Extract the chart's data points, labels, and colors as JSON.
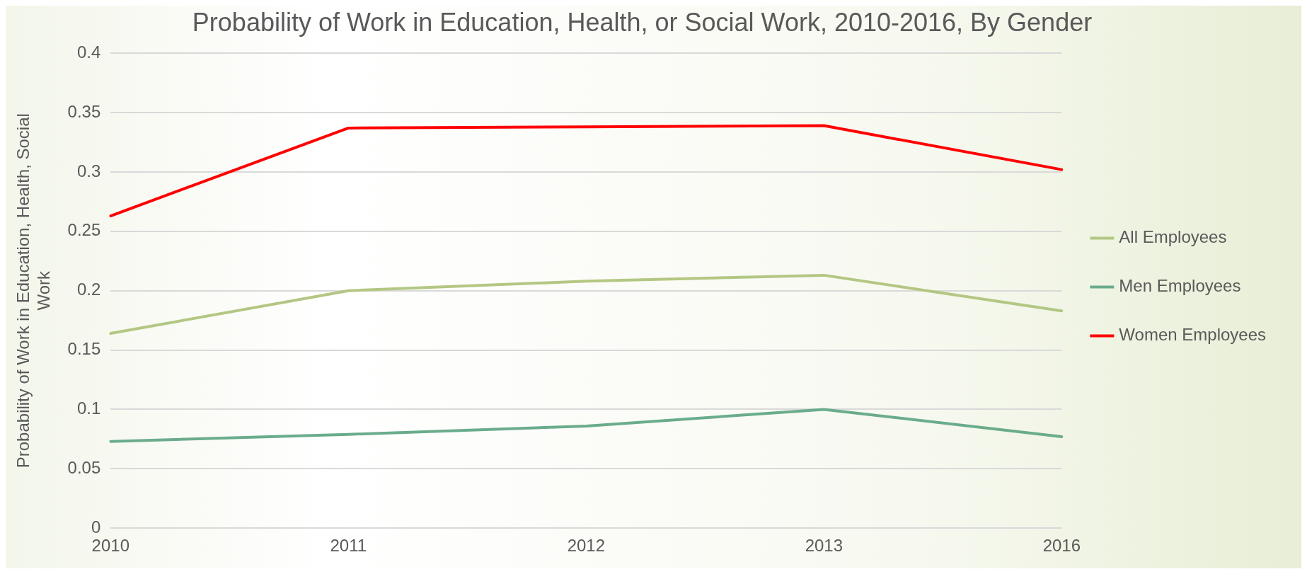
{
  "chart_data": {
    "type": "line",
    "title": "Probability of Work in Education, Health, or Social Work, 2010-2016, By Gender",
    "ylabel": "Probability of Work in Education, Health, Social Work",
    "categories": [
      "2010",
      "2011",
      "2012",
      "2013",
      "2016"
    ],
    "series": [
      {
        "name": "All Employees",
        "color": "#b3c783",
        "values": [
          0.164,
          0.2,
          0.208,
          0.213,
          0.183
        ]
      },
      {
        "name": "Men Employees",
        "color": "#6aac8c",
        "values": [
          0.073,
          0.079,
          0.086,
          0.1,
          0.077
        ]
      },
      {
        "name": "Women Employees",
        "color": "#ff0000",
        "values": [
          0.263,
          0.337,
          0.338,
          0.339,
          0.302
        ]
      }
    ],
    "ylim": [
      0,
      0.4
    ],
    "yticks": [
      0,
      0.05,
      0.1,
      0.15,
      0.2,
      0.25,
      0.3,
      0.35,
      0.4
    ],
    "grid": "y",
    "legend": "right",
    "marker": "none"
  }
}
